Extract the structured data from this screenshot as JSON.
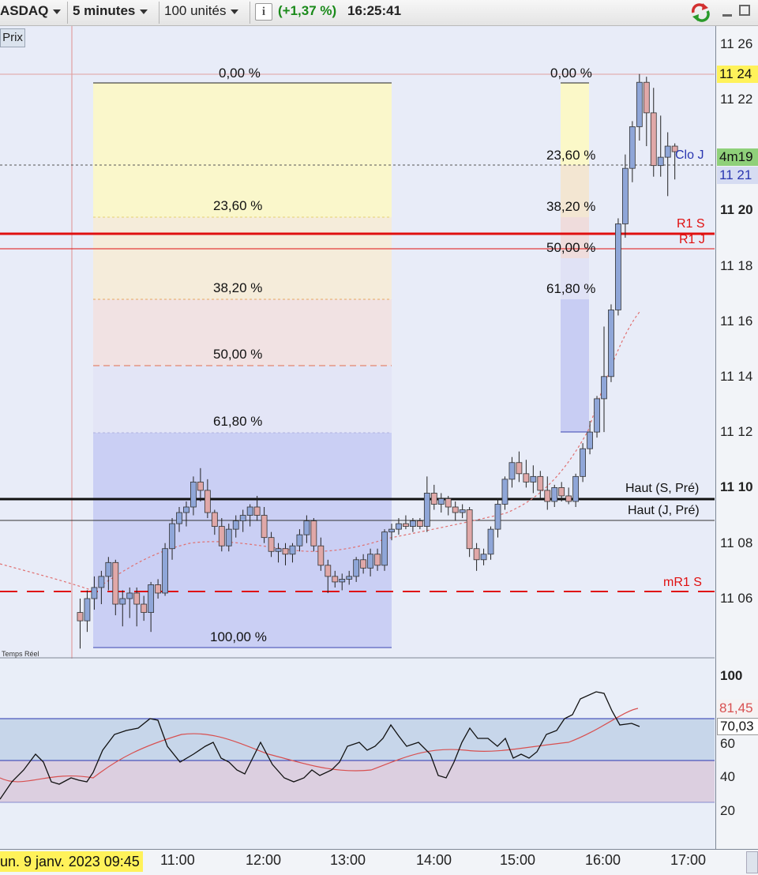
{
  "toolbar": {
    "instrument": "ASDAQ",
    "timeframe": "5 minutes",
    "units": "100 unités",
    "change": "(+1,37 %)",
    "time": "16:25:41",
    "colors": {
      "change": "#1a8a1a"
    }
  },
  "chart": {
    "panel_label": "Prix",
    "realtime_label": "Temps Réel",
    "price_ticks": [
      "11 26",
      "11 24",
      "11 22",
      "11 20",
      "11 18",
      "11 16",
      "11 14",
      "11 12",
      "11 10",
      "11 08",
      "11 06"
    ],
    "current_price_tag": "11 24",
    "countdown_tag": "4m19",
    "clo_price_tag": "11 21",
    "fibo_left": [
      "0,00 %",
      "23,60 %",
      "38,20 %",
      "50,00 %",
      "61,80 %",
      "100,00 %"
    ],
    "fibo_right": [
      "0,00 %",
      "23,60 %",
      "38,20 %",
      "50,00 %",
      "61,80 %"
    ],
    "lines": {
      "clo_j": "Clo J",
      "r1_s": "R1 S",
      "r1_j": "R1 J",
      "haut_s": "Haut (S, Pré)",
      "haut_j": "Haut (J, Pré)",
      "mr1_s": "mR1 S"
    },
    "colors": {
      "up_candle": "#8fa6d8",
      "down_candle": "#e0a8a8",
      "pivot_red": "#e01010",
      "fibo_yellow": "#fbf8c8",
      "fibo_blue": "#c8cff5"
    }
  },
  "oscillator": {
    "ticks": [
      "100",
      "60",
      "40",
      "20"
    ],
    "tag_signal": "81,45",
    "tag_value": "70,03"
  },
  "xaxis": {
    "first_label": "un. 9 janv. 2023 09:45",
    "labels": [
      "11:00",
      "12:00",
      "13:00",
      "14:00",
      "15:00",
      "16:00",
      "17:00"
    ]
  },
  "chart_data": {
    "type": "candlestick",
    "candles": [
      {
        "x": "09:50",
        "o": 11055,
        "h": 11060,
        "l": 11042,
        "c": 11052
      },
      {
        "x": "09:55",
        "o": 11052,
        "h": 11063,
        "l": 11048,
        "c": 11060
      },
      {
        "x": "10:00",
        "o": 11060,
        "h": 11068,
        "l": 11056,
        "c": 11064
      },
      {
        "x": "10:05",
        "o": 11064,
        "h": 11070,
        "l": 11058,
        "c": 11068
      },
      {
        "x": "10:10",
        "o": 11068,
        "h": 11075,
        "l": 11063,
        "c": 11073
      },
      {
        "x": "10:15",
        "o": 11073,
        "h": 11074,
        "l": 11054,
        "c": 11058
      },
      {
        "x": "10:20",
        "o": 11058,
        "h": 11063,
        "l": 11050,
        "c": 11060
      },
      {
        "x": "10:25",
        "o": 11060,
        "h": 11064,
        "l": 11053,
        "c": 11062
      },
      {
        "x": "10:30",
        "o": 11062,
        "h": 11064,
        "l": 11050,
        "c": 11058
      },
      {
        "x": "10:35",
        "o": 11058,
        "h": 11061,
        "l": 11052,
        "c": 11055
      },
      {
        "x": "10:40",
        "o": 11055,
        "h": 11066,
        "l": 11048,
        "c": 11065
      },
      {
        "x": "10:45",
        "o": 11065,
        "h": 11067,
        "l": 11060,
        "c": 11062
      },
      {
        "x": "10:50",
        "o": 11062,
        "h": 11080,
        "l": 11061,
        "c": 11078
      },
      {
        "x": "10:55",
        "o": 11078,
        "h": 11089,
        "l": 11074,
        "c": 11087
      },
      {
        "x": "11:00",
        "o": 11087,
        "h": 11093,
        "l": 11084,
        "c": 11091
      },
      {
        "x": "11:05",
        "o": 11091,
        "h": 11095,
        "l": 11086,
        "c": 11093
      },
      {
        "x": "11:10",
        "o": 11093,
        "h": 11104,
        "l": 11090,
        "c": 11102
      },
      {
        "x": "11:15",
        "o": 11102,
        "h": 11107,
        "l": 11095,
        "c": 11099
      },
      {
        "x": "11:20",
        "o": 11099,
        "h": 11103,
        "l": 11089,
        "c": 11091
      },
      {
        "x": "11:25",
        "o": 11091,
        "h": 11092,
        "l": 11083,
        "c": 11086
      },
      {
        "x": "11:30",
        "o": 11086,
        "h": 11089,
        "l": 11077,
        "c": 11079
      },
      {
        "x": "11:35",
        "o": 11079,
        "h": 11087,
        "l": 11077,
        "c": 11085
      },
      {
        "x": "11:40",
        "o": 11085,
        "h": 11090,
        "l": 11082,
        "c": 11088
      },
      {
        "x": "11:45",
        "o": 11088,
        "h": 11092,
        "l": 11084,
        "c": 11090
      },
      {
        "x": "11:50",
        "o": 11090,
        "h": 11094,
        "l": 11086,
        "c": 11093
      },
      {
        "x": "11:55",
        "o": 11093,
        "h": 11097,
        "l": 11088,
        "c": 11090
      },
      {
        "x": "12:00",
        "o": 11090,
        "h": 11093,
        "l": 11080,
        "c": 11082
      },
      {
        "x": "12:05",
        "o": 11082,
        "h": 11084,
        "l": 11075,
        "c": 11077
      },
      {
        "x": "12:10",
        "o": 11077,
        "h": 11080,
        "l": 11073,
        "c": 11078
      },
      {
        "x": "12:15",
        "o": 11078,
        "h": 11080,
        "l": 11072,
        "c": 11076
      },
      {
        "x": "12:20",
        "o": 11076,
        "h": 11080,
        "l": 11073,
        "c": 11079
      },
      {
        "x": "12:25",
        "o": 11079,
        "h": 11085,
        "l": 11077,
        "c": 11083
      },
      {
        "x": "12:30",
        "o": 11083,
        "h": 11090,
        "l": 11080,
        "c": 11088
      },
      {
        "x": "12:35",
        "o": 11088,
        "h": 11089,
        "l": 11077,
        "c": 11079
      },
      {
        "x": "12:40",
        "o": 11079,
        "h": 11082,
        "l": 11070,
        "c": 11072
      },
      {
        "x": "12:45",
        "o": 11072,
        "h": 11074,
        "l": 11062,
        "c": 11068
      },
      {
        "x": "12:50",
        "o": 11068,
        "h": 11070,
        "l": 11064,
        "c": 11066
      },
      {
        "x": "12:55",
        "o": 11066,
        "h": 11069,
        "l": 11063,
        "c": 11067
      },
      {
        "x": "13:00",
        "o": 11067,
        "h": 11070,
        "l": 11065,
        "c": 11068
      },
      {
        "x": "13:05",
        "o": 11068,
        "h": 11075,
        "l": 11066,
        "c": 11074
      },
      {
        "x": "13:10",
        "o": 11074,
        "h": 11076,
        "l": 11069,
        "c": 11071
      },
      {
        "x": "13:15",
        "o": 11071,
        "h": 11078,
        "l": 11068,
        "c": 11076
      },
      {
        "x": "13:20",
        "o": 11076,
        "h": 11078,
        "l": 11070,
        "c": 11072
      },
      {
        "x": "13:25",
        "o": 11072,
        "h": 11085,
        "l": 11070,
        "c": 11084
      },
      {
        "x": "13:30",
        "o": 11084,
        "h": 11087,
        "l": 11081,
        "c": 11085
      },
      {
        "x": "13:35",
        "o": 11085,
        "h": 11089,
        "l": 11083,
        "c": 11087
      },
      {
        "x": "13:40",
        "o": 11087,
        "h": 11090,
        "l": 11085,
        "c": 11086
      },
      {
        "x": "13:45",
        "o": 11086,
        "h": 11089,
        "l": 11084,
        "c": 11088
      },
      {
        "x": "13:50",
        "o": 11088,
        "h": 11089,
        "l": 11085,
        "c": 11086
      },
      {
        "x": "13:55",
        "o": 11086,
        "h": 11104,
        "l": 11084,
        "c": 11098
      },
      {
        "x": "14:00",
        "o": 11098,
        "h": 11101,
        "l": 11092,
        "c": 11094
      },
      {
        "x": "14:05",
        "o": 11094,
        "h": 11098,
        "l": 11091,
        "c": 11096
      },
      {
        "x": "14:10",
        "o": 11096,
        "h": 11097,
        "l": 11090,
        "c": 11093
      },
      {
        "x": "14:15",
        "o": 11093,
        "h": 11095,
        "l": 11088,
        "c": 11091
      },
      {
        "x": "14:20",
        "o": 11091,
        "h": 11094,
        "l": 11089,
        "c": 11092
      },
      {
        "x": "14:25",
        "o": 11092,
        "h": 11093,
        "l": 11075,
        "c": 11078
      },
      {
        "x": "14:30",
        "o": 11078,
        "h": 11080,
        "l": 11070,
        "c": 11074
      },
      {
        "x": "14:35",
        "o": 11074,
        "h": 11078,
        "l": 11072,
        "c": 11076
      },
      {
        "x": "14:40",
        "o": 11076,
        "h": 11086,
        "l": 11074,
        "c": 11085
      },
      {
        "x": "14:45",
        "o": 11085,
        "h": 11096,
        "l": 11082,
        "c": 11094
      },
      {
        "x": "14:50",
        "o": 11094,
        "h": 11104,
        "l": 11092,
        "c": 11103
      },
      {
        "x": "14:55",
        "o": 11103,
        "h": 11111,
        "l": 11100,
        "c": 11109
      },
      {
        "x": "15:00",
        "o": 11109,
        "h": 11113,
        "l": 11102,
        "c": 11105
      },
      {
        "x": "15:05",
        "o": 11105,
        "h": 11110,
        "l": 11100,
        "c": 11102
      },
      {
        "x": "15:10",
        "o": 11102,
        "h": 11108,
        "l": 11098,
        "c": 11104
      },
      {
        "x": "15:15",
        "o": 11104,
        "h": 11106,
        "l": 11096,
        "c": 11099
      },
      {
        "x": "15:20",
        "o": 11099,
        "h": 11104,
        "l": 11092,
        "c": 11095
      },
      {
        "x": "15:25",
        "o": 11095,
        "h": 11101,
        "l": 11093,
        "c": 11100
      },
      {
        "x": "15:30",
        "o": 11100,
        "h": 11102,
        "l": 11095,
        "c": 11097
      },
      {
        "x": "15:35",
        "o": 11097,
        "h": 11100,
        "l": 11094,
        "c": 11095
      },
      {
        "x": "15:40",
        "o": 11095,
        "h": 11105,
        "l": 11093,
        "c": 11104
      },
      {
        "x": "15:45",
        "o": 11104,
        "h": 11116,
        "l": 11102,
        "c": 11114
      },
      {
        "x": "15:50",
        "o": 11114,
        "h": 11124,
        "l": 11112,
        "c": 11120
      },
      {
        "x": "15:55",
        "o": 11120,
        "h": 11133,
        "l": 11118,
        "c": 11132
      },
      {
        "x": "16:00",
        "o": 11132,
        "h": 11158,
        "l": 11120,
        "c": 11140
      },
      {
        "x": "16:05",
        "o": 11140,
        "h": 11166,
        "l": 11138,
        "c": 11164
      },
      {
        "x": "16:10",
        "o": 11164,
        "h": 11197,
        "l": 11162,
        "c": 11195
      },
      {
        "x": "16:15",
        "o": 11195,
        "h": 11220,
        "l": 11190,
        "c": 11215
      },
      {
        "x": "16:20",
        "o": 11215,
        "h": 11232,
        "l": 11210,
        "c": 11230
      },
      {
        "x": "16:25",
        "o": 11230,
        "h": 11249,
        "l": 11225,
        "c": 11246
      },
      {
        "x": "16:30",
        "o": 11246,
        "h": 11248,
        "l": 11223,
        "c": 11235
      },
      {
        "x": "16:35",
        "o": 11235,
        "h": 11244,
        "l": 11212,
        "c": 11216
      },
      {
        "x": "16:40",
        "o": 11216,
        "h": 11234,
        "l": 11212,
        "c": 11219
      },
      {
        "x": "16:45",
        "o": 11219,
        "h": 11228,
        "l": 11205,
        "c": 11223
      },
      {
        "x": "16:50",
        "o": 11223,
        "h": 11224,
        "l": 11211,
        "c": 11221
      }
    ],
    "yrange": [
      11040,
      11268
    ],
    "oscillator_range": [
      0,
      100
    ]
  }
}
